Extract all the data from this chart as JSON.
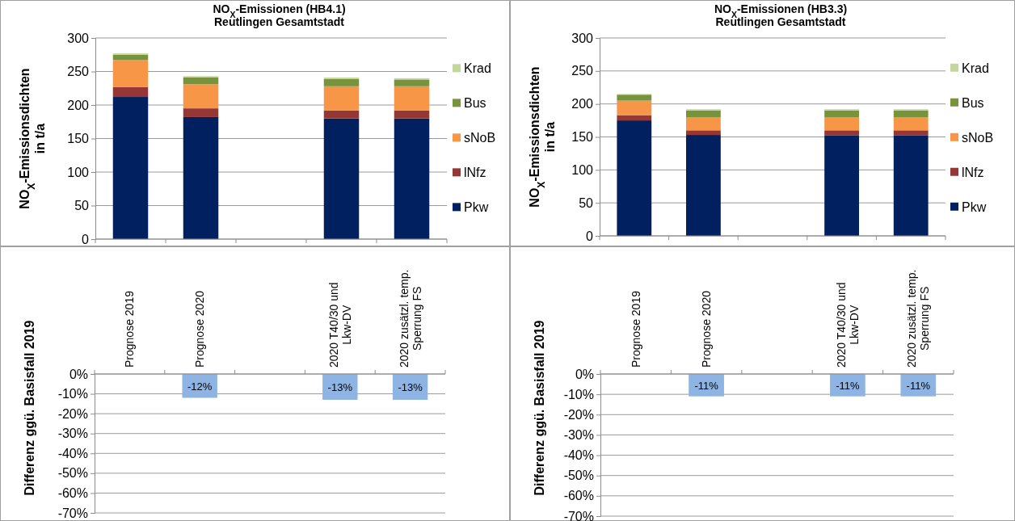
{
  "chart_data": [
    {
      "type": "bar",
      "title": "NO$_{X}$-Emissionen (HB4.1)",
      "subtitle": "Reutlingen Gesamtstadt",
      "ylabel": "NO$_{X}$-Emissionsdichten\nin t/a",
      "categories": [
        null,
        null,
        null,
        null,
        null
      ],
      "stacked": true,
      "ylim": [
        0,
        300
      ],
      "yticks": [
        0,
        50,
        100,
        150,
        200,
        250,
        300
      ],
      "grid": "y",
      "legend": "right",
      "series": [
        {
          "name": "Pkw",
          "color": "#002060",
          "values": [
            212,
            182,
            null,
            180,
            180
          ]
        },
        {
          "name": "lNfz",
          "color": "#953735",
          "values": [
            15,
            13,
            null,
            12,
            12
          ]
        },
        {
          "name": "sNoB",
          "color": "#f79646",
          "values": [
            40,
            36,
            null,
            36,
            36
          ]
        },
        {
          "name": "Bus",
          "color": "#77933c",
          "values": [
            8,
            10,
            null,
            11,
            10
          ]
        },
        {
          "name": "Krad",
          "color": "#c3d69b",
          "values": [
            2,
            2,
            null,
            2,
            2
          ]
        }
      ]
    },
    {
      "type": "bar",
      "title": "NO$_{X}$-Emissionen (HB3.3)",
      "subtitle": "Reutlingen Gesamtstadt",
      "ylabel": "NO$_{X}$-Emissionsdichten\nin t/a",
      "categories": [
        null,
        null,
        null,
        null,
        null
      ],
      "stacked": true,
      "ylim": [
        0,
        300
      ],
      "yticks": [
        0,
        50,
        100,
        150,
        200,
        250,
        300
      ],
      "grid": "y",
      "legend": "right",
      "series": [
        {
          "name": "Pkw",
          "color": "#002060",
          "values": [
            175,
            153,
            null,
            152,
            152
          ]
        },
        {
          "name": "lNfz",
          "color": "#953735",
          "values": [
            8,
            7,
            null,
            8,
            8
          ]
        },
        {
          "name": "sNoB",
          "color": "#f79646",
          "values": [
            22,
            20,
            null,
            20,
            20
          ]
        },
        {
          "name": "Bus",
          "color": "#77933c",
          "values": [
            9,
            10,
            null,
            10,
            10
          ]
        },
        {
          "name": "Krad",
          "color": "#c3d69b",
          "values": [
            1,
            2,
            null,
            2,
            2
          ]
        }
      ]
    },
    {
      "type": "bar",
      "ylabel": "Differenz ggü. Basisfall 2019",
      "categories": [
        "Prognose 2019",
        "Prognose 2020",
        null,
        "2020 T40/30 und\nLkw-DV",
        "2020 zusätzl. temp.\nSperrung FS"
      ],
      "ylim": [
        -70,
        0
      ],
      "yticks": [
        {
          "value": 0,
          "label": "0%"
        },
        {
          "value": -10,
          "label": "-10%"
        },
        {
          "value": -20,
          "label": "-20%"
        },
        {
          "value": -30,
          "label": "-30%"
        },
        {
          "value": -40,
          "label": "-40%"
        },
        {
          "value": -50,
          "label": "-50%"
        },
        {
          "value": -60,
          "label": "-60%"
        },
        {
          "value": -70,
          "label": "-70%"
        }
      ],
      "grid": "y",
      "color": "#8db4e2",
      "values": [
        null,
        -12,
        null,
        -13,
        -13
      ],
      "value_labels": [
        null,
        "-12%",
        null,
        "-13%",
        "-13%"
      ]
    },
    {
      "type": "bar",
      "ylabel": "Differenz ggü. Basisfall 2019",
      "categories": [
        "Prognose 2019",
        "Prognose 2020",
        null,
        "2020 T40/30 und\nLkw-DV",
        "2020 zusätzl. temp.\nSperrung FS"
      ],
      "ylim": [
        -70,
        0
      ],
      "yticks": [
        {
          "value": 0,
          "label": "0%"
        },
        {
          "value": -10,
          "label": "-10%"
        },
        {
          "value": -20,
          "label": "-20%"
        },
        {
          "value": -30,
          "label": "-30%"
        },
        {
          "value": -40,
          "label": "-40%"
        },
        {
          "value": -50,
          "label": "-50%"
        },
        {
          "value": -60,
          "label": "-60%"
        },
        {
          "value": -70,
          "label": "-70%"
        }
      ],
      "grid": "y",
      "color": "#8db4e2",
      "values": [
        null,
        -11,
        null,
        -11,
        -11
      ],
      "value_labels": [
        null,
        "-11%",
        null,
        "-11%",
        "-11%"
      ]
    }
  ]
}
